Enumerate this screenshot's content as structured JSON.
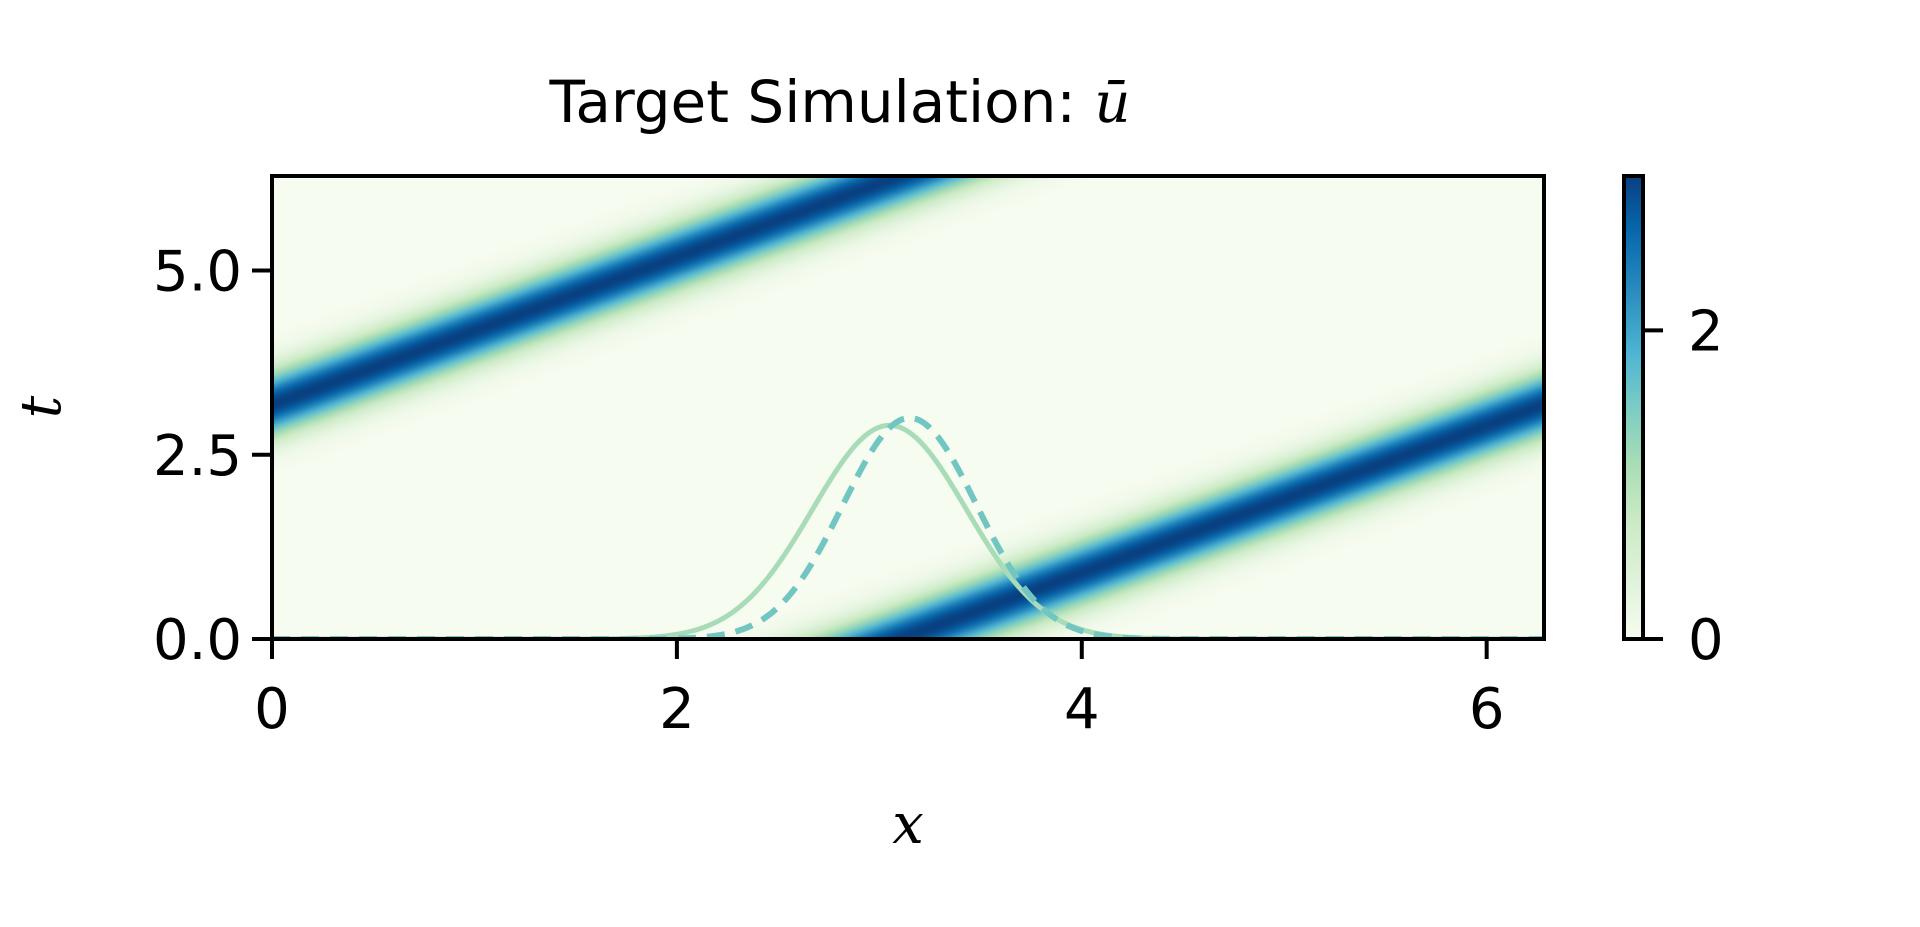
{
  "chart_data": {
    "type": "heatmap",
    "title_prefix": "Target Simulation: ",
    "title_symbol": "ū",
    "xlabel": "x",
    "ylabel": "t",
    "xlim": [
      0,
      6.2832
    ],
    "ylim": [
      0,
      6.2832
    ],
    "x_ticks": [
      {
        "value": 0,
        "label": "0"
      },
      {
        "value": 2,
        "label": "2"
      },
      {
        "value": 4,
        "label": "4"
      },
      {
        "value": 6,
        "label": "6"
      }
    ],
    "y_ticks": [
      {
        "value": 0.0,
        "label": "0.0"
      },
      {
        "value": 2.5,
        "label": "2.5"
      },
      {
        "value": 5.0,
        "label": "5.0"
      }
    ],
    "colormap": "GnBu",
    "colorbar": {
      "range": [
        0,
        3
      ],
      "ticks": [
        {
          "value": 0,
          "label": "0"
        },
        {
          "value": 2,
          "label": "2"
        }
      ]
    },
    "field": {
      "description": "traveling pulse u(x,t) = A*exp(-((x - x0 - c*t) mod 2pi)^2 / (2*sigma^2))",
      "amplitude": 3.0,
      "x0": 3.1,
      "speed": 1.0,
      "sigma": 0.3
    },
    "overlay_curves": [
      {
        "style": "solid",
        "color": "#a8dcb8",
        "center": 3.05,
        "peak": 2.9,
        "sigma": 0.38
      },
      {
        "style": "dashed",
        "color": "#72c6c2",
        "center": 3.15,
        "peak": 3.0,
        "sigma": 0.33
      }
    ]
  }
}
